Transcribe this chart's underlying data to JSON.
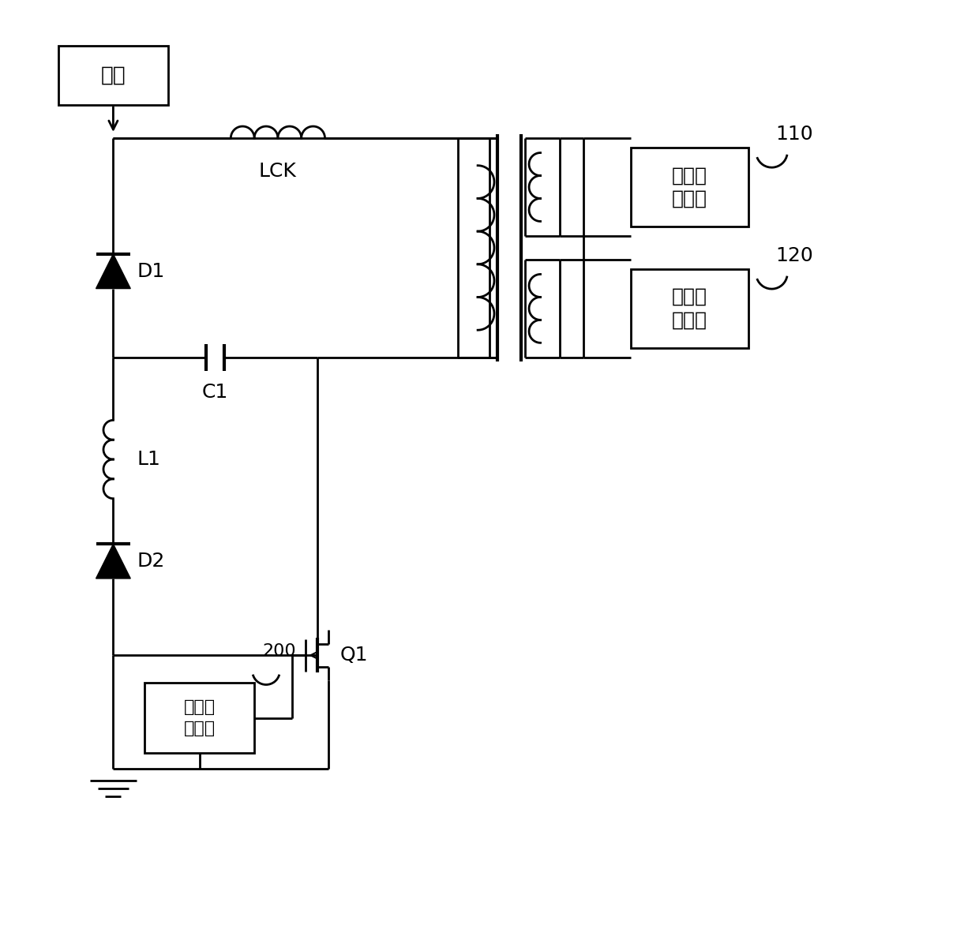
{
  "bg_color": "#ffffff",
  "line_color": "#000000",
  "lw": 2.0,
  "fs": 18,
  "fig_w": 12.4,
  "fig_h": 11.72,
  "labels": {
    "power": "电源",
    "LCK": "LCK",
    "D1": "D1",
    "C1": "C1",
    "L1": "L1",
    "D2": "D2",
    "Q1": "Q1",
    "chip": "开关电\n源芯片",
    "chip_num": "200",
    "out1": "第一输\n出电路",
    "out2": "第二输\n出电路",
    "num110": "110",
    "num120": "120"
  }
}
